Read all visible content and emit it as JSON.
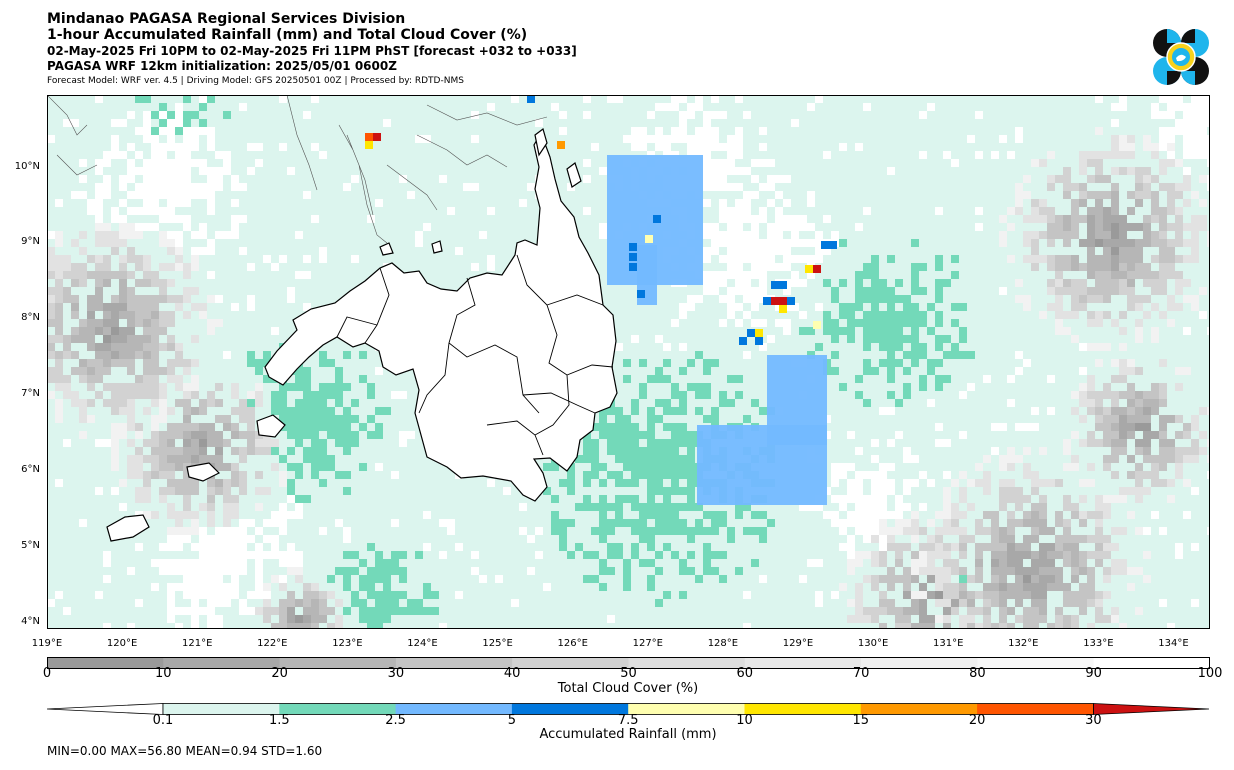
{
  "header": {
    "line1": "Mindanao PAGASA Regional Services Division",
    "line2": "1-hour Accumulated Rainfall (mm) and Total Cloud Cover (%)",
    "line3": "02-May-2025 Fri 10PM to 02-May-2025 Fri 11PM PhST [forecast +032 to +033]",
    "line4": "PAGASA WRF 12km initialization: 2025/05/01 0600Z",
    "line5": "Forecast Model: WRF ver. 4.5 | Driving Model: GFS 20250501 00Z | Processed by: RDTD-NMS"
  },
  "map": {
    "lat_labels": [
      "10°N",
      "9°N",
      "8°N",
      "7°N",
      "6°N",
      "5°N",
      "4°N"
    ],
    "lon_labels": [
      "119°E",
      "120°E",
      "121°E",
      "122°E",
      "123°E",
      "124°E",
      "125°E",
      "126°E",
      "127°E",
      "128°E",
      "129°E",
      "130°E",
      "131°E",
      "132°E",
      "133°E",
      "134°E"
    ],
    "extent": {
      "lon": [
        119,
        134.5
      ],
      "lat": [
        3.9,
        11.0
      ]
    }
  },
  "cloud_cover": {
    "label": "Total Cloud Cover (%)",
    "ticks": [
      "0",
      "10",
      "20",
      "30",
      "40",
      "50",
      "60",
      "70",
      "80",
      "90",
      "100"
    ],
    "colors": [
      "#9a9a9a",
      "#a8a8a8",
      "#b6b6b6",
      "#c4c4c4",
      "#d2d2d2",
      "#dedede",
      "#e8e8e8",
      "#f0f0f0",
      "#f7f7f7",
      "#ffffff"
    ]
  },
  "rainfall": {
    "label": "Accumulated Rainfall (mm)",
    "ticks": [
      "0.1",
      "1.5",
      "2.5",
      "5",
      "7.5",
      "10",
      "15",
      "20",
      "30"
    ],
    "colors": [
      "#dcf5ee",
      "#73d9b9",
      "#73b9ff",
      "#0077dd",
      "#ffffb0",
      "#ffe600",
      "#ff9900",
      "#ff5500",
      "#cc1111"
    ]
  },
  "stats": "MIN=0.00   MAX=56.80   MEAN=0.94   STD=1.60"
}
